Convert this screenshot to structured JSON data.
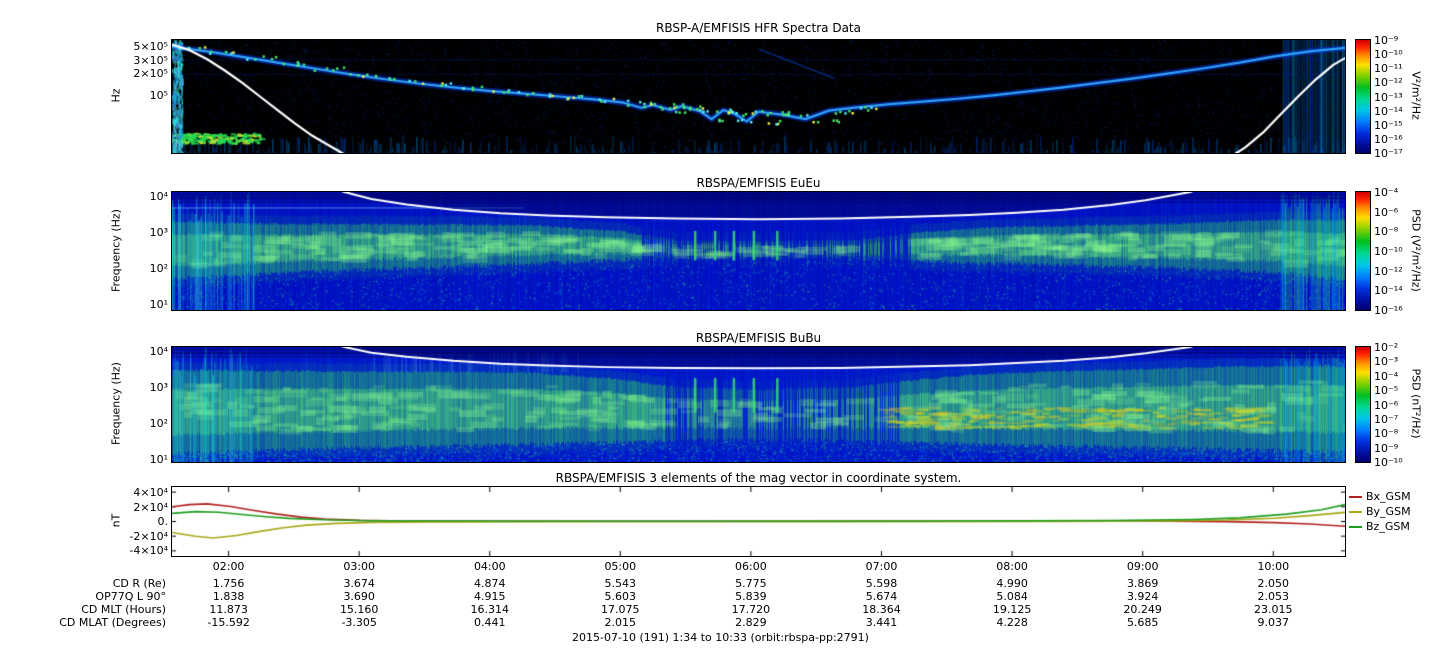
{
  "page": {
    "background": "#ffffff"
  },
  "footer": {
    "text": "2015-07-10 (191) 1:34 to 10:33 (orbit:rbspa-pp:2791)"
  },
  "time_axis": {
    "start": "1:34",
    "end": "10:33",
    "ticks": [
      "02:00",
      "03:00",
      "04:00",
      "05:00",
      "06:00",
      "07:00",
      "08:00",
      "09:00",
      "10:00"
    ]
  },
  "bottom_table": {
    "rows": [
      {
        "label": "CD R (Re)",
        "values": [
          "1.756",
          "3.674",
          "4.874",
          "5.543",
          "5.775",
          "5.598",
          "4.990",
          "3.869",
          "2.050"
        ]
      },
      {
        "label": "OP77Q L 90°",
        "values": [
          "1.838",
          "3.690",
          "4.915",
          "5.603",
          "5.839",
          "5.674",
          "5.084",
          "3.924",
          "2.053"
        ]
      },
      {
        "label": "CD MLT (Hours)",
        "values": [
          "11.873",
          "15.160",
          "16.314",
          "17.075",
          "17.720",
          "18.364",
          "19.125",
          "20.249",
          "23.015"
        ]
      },
      {
        "label": "CD MLAT (Degrees)",
        "values": [
          "-15.592",
          "-3.305",
          "0.441",
          "2.015",
          "2.829",
          "3.441",
          "4.228",
          "5.685",
          "9.037"
        ]
      }
    ]
  },
  "chart_data": [
    {
      "type": "heatmap",
      "title": "RBSP-A/EMFISIS  HFR Spectra Data",
      "ylabel": "Hz",
      "yscale": "log",
      "yticks": [
        "5×10⁵",
        "3×10⁵",
        "2×10⁵",
        "10⁵"
      ],
      "background": "#000000",
      "colorbar": {
        "label": "V²/m²/Hz",
        "ticks": [
          "10⁻⁹",
          "10⁻¹⁰",
          "10⁻¹¹",
          "10⁻¹²",
          "10⁻¹³",
          "10⁻¹⁴",
          "10⁻¹⁵",
          "10⁻¹⁶",
          "10⁻¹⁷"
        ]
      },
      "white_curve_norm": [
        [
          0,
          0.04
        ],
        [
          0.015,
          0.09
        ],
        [
          0.03,
          0.17
        ],
        [
          0.045,
          0.27
        ],
        [
          0.06,
          0.38
        ],
        [
          0.075,
          0.5
        ],
        [
          0.09,
          0.62
        ],
        [
          0.105,
          0.74
        ],
        [
          0.12,
          0.85
        ],
        [
          0.135,
          0.94
        ],
        [
          0.15,
          1.03
        ],
        [
          0.2,
          1.4
        ],
        [
          0.5,
          1.6
        ],
        [
          0.8,
          1.4
        ],
        [
          0.9,
          1.05
        ],
        [
          0.915,
          0.95
        ],
        [
          0.93,
          0.82
        ],
        [
          0.945,
          0.66
        ],
        [
          0.96,
          0.5
        ],
        [
          0.975,
          0.35
        ],
        [
          0.99,
          0.22
        ],
        [
          1,
          0.16
        ]
      ],
      "uhr_curve_norm": [
        [
          0,
          0.06
        ],
        [
          0.03,
          0.1
        ],
        [
          0.06,
          0.15
        ],
        [
          0.09,
          0.2
        ],
        [
          0.12,
          0.25
        ],
        [
          0.15,
          0.3
        ],
        [
          0.18,
          0.345
        ],
        [
          0.21,
          0.385
        ],
        [
          0.24,
          0.42
        ],
        [
          0.27,
          0.45
        ],
        [
          0.3,
          0.475
        ],
        [
          0.33,
          0.5
        ],
        [
          0.36,
          0.525
        ],
        [
          0.385,
          0.555
        ],
        [
          0.4,
          0.6
        ],
        [
          0.41,
          0.575
        ],
        [
          0.425,
          0.62
        ],
        [
          0.435,
          0.585
        ],
        [
          0.45,
          0.63
        ],
        [
          0.46,
          0.7
        ],
        [
          0.47,
          0.62
        ],
        [
          0.48,
          0.655
        ],
        [
          0.49,
          0.72
        ],
        [
          0.5,
          0.635
        ],
        [
          0.52,
          0.66
        ],
        [
          0.54,
          0.7
        ],
        [
          0.56,
          0.625
        ],
        [
          0.58,
          0.6
        ],
        [
          0.61,
          0.57
        ],
        [
          0.64,
          0.545
        ],
        [
          0.67,
          0.52
        ],
        [
          0.7,
          0.49
        ],
        [
          0.73,
          0.455
        ],
        [
          0.76,
          0.42
        ],
        [
          0.79,
          0.38
        ],
        [
          0.82,
          0.34
        ],
        [
          0.85,
          0.295
        ],
        [
          0.88,
          0.25
        ],
        [
          0.91,
          0.2
        ],
        [
          0.94,
          0.145
        ],
        [
          0.97,
          0.1
        ],
        [
          1,
          0.07
        ]
      ],
      "features": [
        "upper hybrid resonance band dips from ~5×10⁵ Hz at perigee to ~8×10⁴ Hz near apogee with sharp density notches near 05:30–06:30",
        "white line: electron cyclotron frequency, visible only near perigee at panel edges",
        "broadband bursty noise at low frequencies and at both time edges"
      ]
    },
    {
      "type": "heatmap",
      "title": "RBSPA/EMFISIS  EuEu",
      "ylabel": "Frequency (Hz)",
      "yscale": "log",
      "yticks": [
        "10⁴",
        "10³",
        "10²",
        "10¹"
      ],
      "background": "#0010c0",
      "colorbar": {
        "label": "PSD (V²/m²/Hz)",
        "ticks": [
          "10⁻⁴",
          "10⁻⁶",
          "10⁻⁸",
          "10⁻¹⁰",
          "10⁻¹²",
          "10⁻¹⁴",
          "10⁻¹⁶"
        ]
      },
      "white_curve_norm": [
        [
          0.128,
          -0.06
        ],
        [
          0.147,
          0
        ],
        [
          0.17,
          0.06
        ],
        [
          0.2,
          0.105
        ],
        [
          0.24,
          0.15
        ],
        [
          0.28,
          0.18
        ],
        [
          0.32,
          0.2
        ],
        [
          0.37,
          0.215
        ],
        [
          0.43,
          0.225
        ],
        [
          0.5,
          0.23
        ],
        [
          0.57,
          0.225
        ],
        [
          0.63,
          0.21
        ],
        [
          0.68,
          0.195
        ],
        [
          0.72,
          0.175
        ],
        [
          0.76,
          0.15
        ],
        [
          0.8,
          0.11
        ],
        [
          0.83,
          0.07
        ],
        [
          0.868,
          0
        ],
        [
          0.886,
          -0.06
        ]
      ],
      "band": {
        "color": "#3cc860",
        "top": [
          [
            0,
            0.25
          ],
          [
            0.08,
            0.27
          ],
          [
            0.3,
            0.28
          ],
          [
            0.38,
            0.33
          ],
          [
            0.43,
            0.41
          ],
          [
            0.5,
            0.42
          ],
          [
            0.58,
            0.41
          ],
          [
            0.64,
            0.34
          ],
          [
            0.7,
            0.3
          ],
          [
            0.85,
            0.27
          ],
          [
            0.93,
            0.24
          ],
          [
            1,
            0.24
          ]
        ],
        "bottom": [
          [
            0,
            0.74
          ],
          [
            0.1,
            0.68
          ],
          [
            0.25,
            0.63
          ],
          [
            0.4,
            0.57
          ],
          [
            0.5,
            0.55
          ],
          [
            0.6,
            0.57
          ],
          [
            0.7,
            0.61
          ],
          [
            0.85,
            0.64
          ],
          [
            0.95,
            0.69
          ],
          [
            1,
            0.74
          ]
        ],
        "gap_region": [
          0.4,
          0.63
        ],
        "gap_density": 0.5
      },
      "spikes": {
        "x": [
          0.445,
          0.462,
          0.478,
          0.495,
          0.515
        ],
        "top": 0.33,
        "height": 0.25
      },
      "hline": [
        0.3,
        0.13
      ],
      "features": [
        "broadband electric-field emission band ~30–2000 Hz across the whole orbit",
        "band narrows with vertical dropouts near apogee 05:30–06:30",
        "white line: electron cyclotron frequency fce"
      ]
    },
    {
      "type": "heatmap",
      "title": "RBSPA/EMFISIS  BuBu",
      "ylabel": "Frequency (Hz)",
      "yscale": "log",
      "yticks": [
        "10⁴",
        "10³",
        "10²",
        "10¹"
      ],
      "background": "#0018c8",
      "colorbar": {
        "label": "PSD (nT²/Hz)",
        "ticks": [
          "10⁻²",
          "10⁻³",
          "10⁻⁴",
          "10⁻⁵",
          "10⁻⁶",
          "10⁻⁷",
          "10⁻⁸",
          "10⁻⁹",
          "10⁻¹⁰"
        ]
      },
      "white_curve_norm": [
        [
          0.128,
          -0.06
        ],
        [
          0.147,
          0
        ],
        [
          0.17,
          0.05
        ],
        [
          0.2,
          0.085
        ],
        [
          0.24,
          0.12
        ],
        [
          0.28,
          0.145
        ],
        [
          0.32,
          0.16
        ],
        [
          0.37,
          0.175
        ],
        [
          0.43,
          0.182
        ],
        [
          0.5,
          0.185
        ],
        [
          0.57,
          0.182
        ],
        [
          0.63,
          0.17
        ],
        [
          0.68,
          0.158
        ],
        [
          0.72,
          0.14
        ],
        [
          0.76,
          0.12
        ],
        [
          0.8,
          0.09
        ],
        [
          0.83,
          0.055
        ],
        [
          0.868,
          0
        ],
        [
          0.886,
          -0.06
        ]
      ],
      "band": {
        "color": "#3cc860",
        "top": [
          [
            0,
            0.2
          ],
          [
            0.1,
            0.21
          ],
          [
            0.3,
            0.22
          ],
          [
            0.38,
            0.28
          ],
          [
            0.43,
            0.35
          ],
          [
            0.5,
            0.37
          ],
          [
            0.58,
            0.35
          ],
          [
            0.64,
            0.28
          ],
          [
            0.7,
            0.23
          ],
          [
            0.8,
            0.2
          ],
          [
            0.9,
            0.17
          ],
          [
            1,
            0.17
          ]
        ],
        "bottom": [
          [
            0,
            0.93
          ],
          [
            0.1,
            0.89
          ],
          [
            0.3,
            0.85
          ],
          [
            0.45,
            0.81
          ],
          [
            0.55,
            0.81
          ],
          [
            0.7,
            0.85
          ],
          [
            0.85,
            0.88
          ],
          [
            1,
            0.91
          ]
        ],
        "gap_region": [
          0.42,
          0.62
        ],
        "gap_density": 0.45
      },
      "spikes": {
        "x": [
          0.445,
          0.462,
          0.478,
          0.495,
          0.515
        ],
        "top": 0.27,
        "height": 0.3
      },
      "yellow_region": [
        0.6,
        0.93,
        0.52,
        0.7
      ],
      "top_striation": [
        0.17,
        0.35,
        0.05,
        0.22
      ],
      "features": [
        "broadband magnetic-field emission 10–3000 Hz, strongest 100–1000 Hz",
        "enhanced yellow-green power ~100 Hz from 07:00–10:00",
        "white line: electron cyclotron frequency fce"
      ]
    },
    {
      "type": "line",
      "title": "RBSPA/EMFISIS  3 elements of the mag vector in coordinate system.",
      "ylabel": "nT",
      "yticks": [
        "4×10⁴",
        "2×10⁴",
        "0.",
        "-2×10⁴",
        "-4×10⁴"
      ],
      "yrange": [
        -47000,
        47000
      ],
      "legend_position": "right",
      "series": [
        {
          "name": "Bx_GSM",
          "color": "#b22222",
          "points": [
            [
              0,
              20000
            ],
            [
              0.015,
              23000
            ],
            [
              0.03,
              24000
            ],
            [
              0.05,
              20500
            ],
            [
              0.07,
              15000
            ],
            [
              0.09,
              10000
            ],
            [
              0.11,
              6000
            ],
            [
              0.13,
              3200
            ],
            [
              0.16,
              1500
            ],
            [
              0.2,
              700
            ],
            [
              0.3,
              400
            ],
            [
              0.45,
              250
            ],
            [
              0.6,
              300
            ],
            [
              0.75,
              400
            ],
            [
              0.85,
              300
            ],
            [
              0.9,
              -200
            ],
            [
              0.94,
              -1500
            ],
            [
              0.97,
              -3500
            ],
            [
              1,
              -6500
            ]
          ]
        },
        {
          "name": "By_GSM",
          "color": "#a8a818",
          "points": [
            [
              0,
              -15000
            ],
            [
              0.02,
              -20000
            ],
            [
              0.035,
              -22500
            ],
            [
              0.055,
              -19000
            ],
            [
              0.075,
              -13500
            ],
            [
              0.095,
              -8500
            ],
            [
              0.115,
              -5000
            ],
            [
              0.14,
              -2500
            ],
            [
              0.17,
              -1200
            ],
            [
              0.22,
              -500
            ],
            [
              0.35,
              -250
            ],
            [
              0.55,
              -150
            ],
            [
              0.75,
              200
            ],
            [
              0.85,
              800
            ],
            [
              0.9,
              2000
            ],
            [
              0.94,
              4500
            ],
            [
              0.97,
              8000
            ],
            [
              1,
              12500
            ]
          ]
        },
        {
          "name": "Bz_GSM",
          "color": "#1f9e1f",
          "points": [
            [
              0,
              11000
            ],
            [
              0.02,
              13500
            ],
            [
              0.04,
              12500
            ],
            [
              0.06,
              9500
            ],
            [
              0.08,
              6500
            ],
            [
              0.1,
              4200
            ],
            [
              0.13,
              2300
            ],
            [
              0.17,
              1100
            ],
            [
              0.25,
              600
            ],
            [
              0.45,
              400
            ],
            [
              0.65,
              600
            ],
            [
              0.8,
              1300
            ],
            [
              0.87,
              2800
            ],
            [
              0.91,
              5000
            ],
            [
              0.95,
              10000
            ],
            [
              0.98,
              16000
            ],
            [
              1,
              23000
            ]
          ]
        }
      ]
    }
  ]
}
